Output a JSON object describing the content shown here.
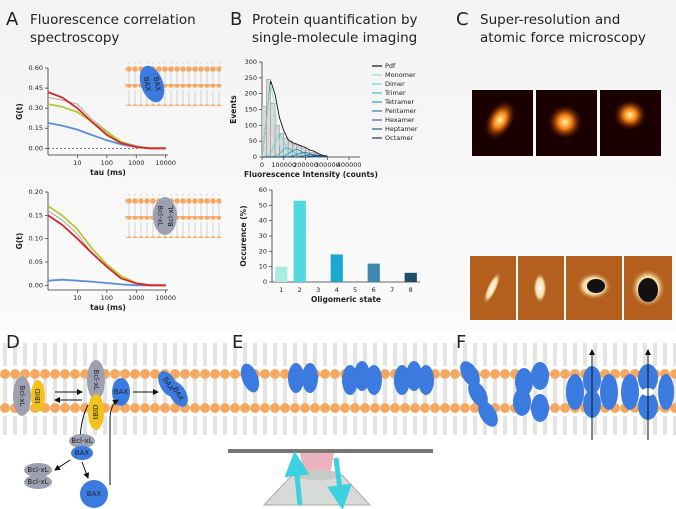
{
  "panels": {
    "A": {
      "label": "A",
      "title": [
        "Fluorescence correlation",
        "spectroscopy"
      ],
      "insets": [
        [
          "BAX",
          "BAX"
        ],
        [
          "Bcl-xL",
          "Bcl-xL"
        ]
      ]
    },
    "B": {
      "label": "B",
      "title": [
        "Protein quantification by",
        "single-molecule imaging"
      ]
    },
    "C": {
      "label": "C",
      "title": [
        "Super-resolution and",
        "atomic force microscopy"
      ]
    },
    "D": {
      "label": "D",
      "items": [
        "Bcl-xL",
        "tBID",
        "Bcl-xL",
        "tBID",
        "BAX",
        "BAX",
        "BAX",
        "Bcl-xL",
        "BAX",
        "Bcl-xL",
        "Bcl-xL",
        "BAX"
      ]
    },
    "E": {
      "label": "E"
    },
    "F": {
      "label": "F"
    }
  },
  "chart_data": [
    {
      "type": "line",
      "log_x": true,
      "zero_line": true,
      "xlabel": "tau (ms)",
      "ylabel": "G(t)",
      "x": [
        1,
        3,
        10,
        30,
        100,
        300,
        1000,
        3000,
        10000
      ],
      "xlim": [
        1,
        12000
      ],
      "xticks": [
        10,
        100,
        1000,
        10000
      ],
      "ylim": [
        -0.05,
        0.6
      ],
      "yticks": [
        {
          "value": 0,
          "label": "0.00"
        },
        {
          "value": 0.15,
          "label": "0.15"
        },
        {
          "value": 0.3,
          "label": "0.30"
        },
        {
          "value": 0.45,
          "label": "0.45"
        },
        {
          "value": 0.6,
          "label": "0.60"
        }
      ],
      "series": [
        {
          "color": "#999999",
          "values": [
            0.38,
            0.36,
            0.33,
            0.22,
            0.13,
            0.05,
            0.02,
            0.0,
            0.0
          ]
        },
        {
          "color": "#5b8fd9",
          "values": [
            0.19,
            0.17,
            0.14,
            0.1,
            0.06,
            0.03,
            0.01,
            0.0,
            0.0
          ]
        },
        {
          "color": "#b5c934",
          "values": [
            0.33,
            0.31,
            0.27,
            0.2,
            0.12,
            0.05,
            0.01,
            0.0,
            0.0
          ]
        },
        {
          "color": "#d6262a",
          "values": [
            0.42,
            0.38,
            0.3,
            0.2,
            0.1,
            0.04,
            0.01,
            0.0,
            0.0
          ]
        }
      ]
    },
    {
      "type": "line",
      "log_x": true,
      "zero_line": false,
      "xlabel": "tau (ms)",
      "ylabel": "G(t)",
      "x": [
        1,
        3,
        10,
        30,
        100,
        300,
        1000,
        3000,
        10000
      ],
      "xlim": [
        1,
        12000
      ],
      "xticks": [
        10,
        100,
        1000,
        10000
      ],
      "ylim": [
        -0.01,
        0.2
      ],
      "yticks": [
        {
          "value": 0,
          "label": "0.00"
        },
        {
          "value": 0.05,
          "label": "0.05"
        },
        {
          "value": 0.1,
          "label": "0.10"
        },
        {
          "value": 0.15,
          "label": "0.15"
        },
        {
          "value": 0.2,
          "label": "0.20"
        }
      ],
      "series": [
        {
          "color": "#999999",
          "values": [
            0.16,
            0.14,
            0.11,
            0.07,
            0.04,
            0.015,
            0.005,
            0.0,
            0.0
          ]
        },
        {
          "color": "#5b8fd9",
          "values": [
            0.01,
            0.012,
            0.01,
            0.008,
            0.005,
            0.002,
            0.0,
            0.0,
            0.0
          ]
        },
        {
          "color": "#b5c934",
          "values": [
            0.17,
            0.15,
            0.12,
            0.08,
            0.045,
            0.02,
            0.005,
            0.0,
            0.0
          ]
        },
        {
          "color": "#d6262a",
          "values": [
            0.15,
            0.13,
            0.1,
            0.07,
            0.04,
            0.015,
            0.004,
            0.0,
            0.0
          ]
        }
      ]
    },
    {
      "type": "histogram",
      "xlabel": "Fluorescence Intensity (counts)",
      "ylabel": "Events",
      "bins": [
        0,
        20000,
        40000,
        60000,
        80000,
        100000,
        120000,
        140000,
        160000,
        180000,
        200000,
        220000,
        240000,
        260000,
        280000,
        300000
      ],
      "counts": [
        160,
        245,
        170,
        100,
        75,
        60,
        50,
        40,
        35,
        28,
        22,
        15,
        10,
        6,
        4
      ],
      "bar_color": "#d9d9d9",
      "xlim": [
        0,
        450000
      ],
      "xticks": [
        0,
        100000,
        200000,
        300000,
        400000
      ],
      "ylim": [
        0,
        300
      ],
      "yticks": [
        0,
        50,
        100,
        150,
        200,
        250,
        300
      ],
      "x": [
        0,
        20000,
        40000,
        60000,
        80000,
        100000,
        120000,
        140000,
        160000,
        180000,
        200000,
        220000,
        240000,
        260000,
        280000,
        300000
      ],
      "series": [
        {
          "name": "Pdf",
          "color": "#111111",
          "values": [
            0,
            120,
            240,
            197,
            125,
            83,
            55,
            45,
            41,
            35,
            30,
            22,
            18,
            10,
            5,
            3
          ]
        },
        {
          "name": "Monomer",
          "color": "#9edfe0",
          "values": [
            0,
            120,
            230,
            150,
            40,
            5,
            0,
            0,
            0,
            0,
            0,
            0,
            0,
            0,
            0,
            0
          ]
        },
        {
          "name": "Dimer",
          "color": "#6cd3d8",
          "values": [
            0,
            0,
            10,
            45,
            75,
            50,
            15,
            2,
            0,
            0,
            0,
            0,
            0,
            0,
            0,
            0
          ]
        },
        {
          "name": "Trimer",
          "color": "#3ec0d0",
          "values": [
            0,
            0,
            0,
            2,
            10,
            25,
            30,
            20,
            8,
            2,
            0,
            0,
            0,
            0,
            0,
            0
          ]
        },
        {
          "name": "Tetramer",
          "color": "#1aa0c8",
          "values": [
            0,
            0,
            0,
            0,
            0,
            3,
            10,
            20,
            25,
            18,
            8,
            2,
            0,
            0,
            0,
            0
          ]
        },
        {
          "name": "Pentamer",
          "color": "#2a7fb8",
          "values": [
            0,
            0,
            0,
            0,
            0,
            0,
            0,
            3,
            8,
            13,
            15,
            10,
            5,
            1,
            0,
            0
          ]
        },
        {
          "name": "Hexamer",
          "color": "#3a68a0",
          "values": [
            0,
            0,
            0,
            0,
            0,
            0,
            0,
            0,
            0,
            2,
            5,
            8,
            7,
            4,
            1,
            0
          ]
        },
        {
          "name": "Heptamer",
          "color": "#2e5a7a",
          "values": [
            0,
            0,
            0,
            0,
            0,
            0,
            0,
            0,
            0,
            0,
            0,
            2,
            4,
            5,
            3,
            1
          ]
        },
        {
          "name": "Octamer",
          "color": "#1e3f5a",
          "values": [
            0,
            0,
            0,
            0,
            0,
            0,
            0,
            0,
            0,
            0,
            0,
            0,
            2,
            3,
            3,
            2
          ]
        }
      ]
    },
    {
      "type": "bar",
      "xlabel": "Oligomeric state",
      "ylabel": "Occurence (%)",
      "categories": [
        "1",
        "2",
        "3",
        "4",
        "5",
        "6",
        "7",
        "8"
      ],
      "values": [
        10,
        53,
        null,
        18,
        null,
        12,
        null,
        6
      ],
      "colors": [
        "#a8ece0",
        "#4fd8e0",
        null,
        "#1aa8d0",
        null,
        "#3f88b0",
        null,
        "#1e4d6a"
      ],
      "ylim": [
        0,
        60
      ],
      "yticks": [
        0,
        10,
        20,
        30,
        40,
        50,
        60
      ]
    }
  ]
}
